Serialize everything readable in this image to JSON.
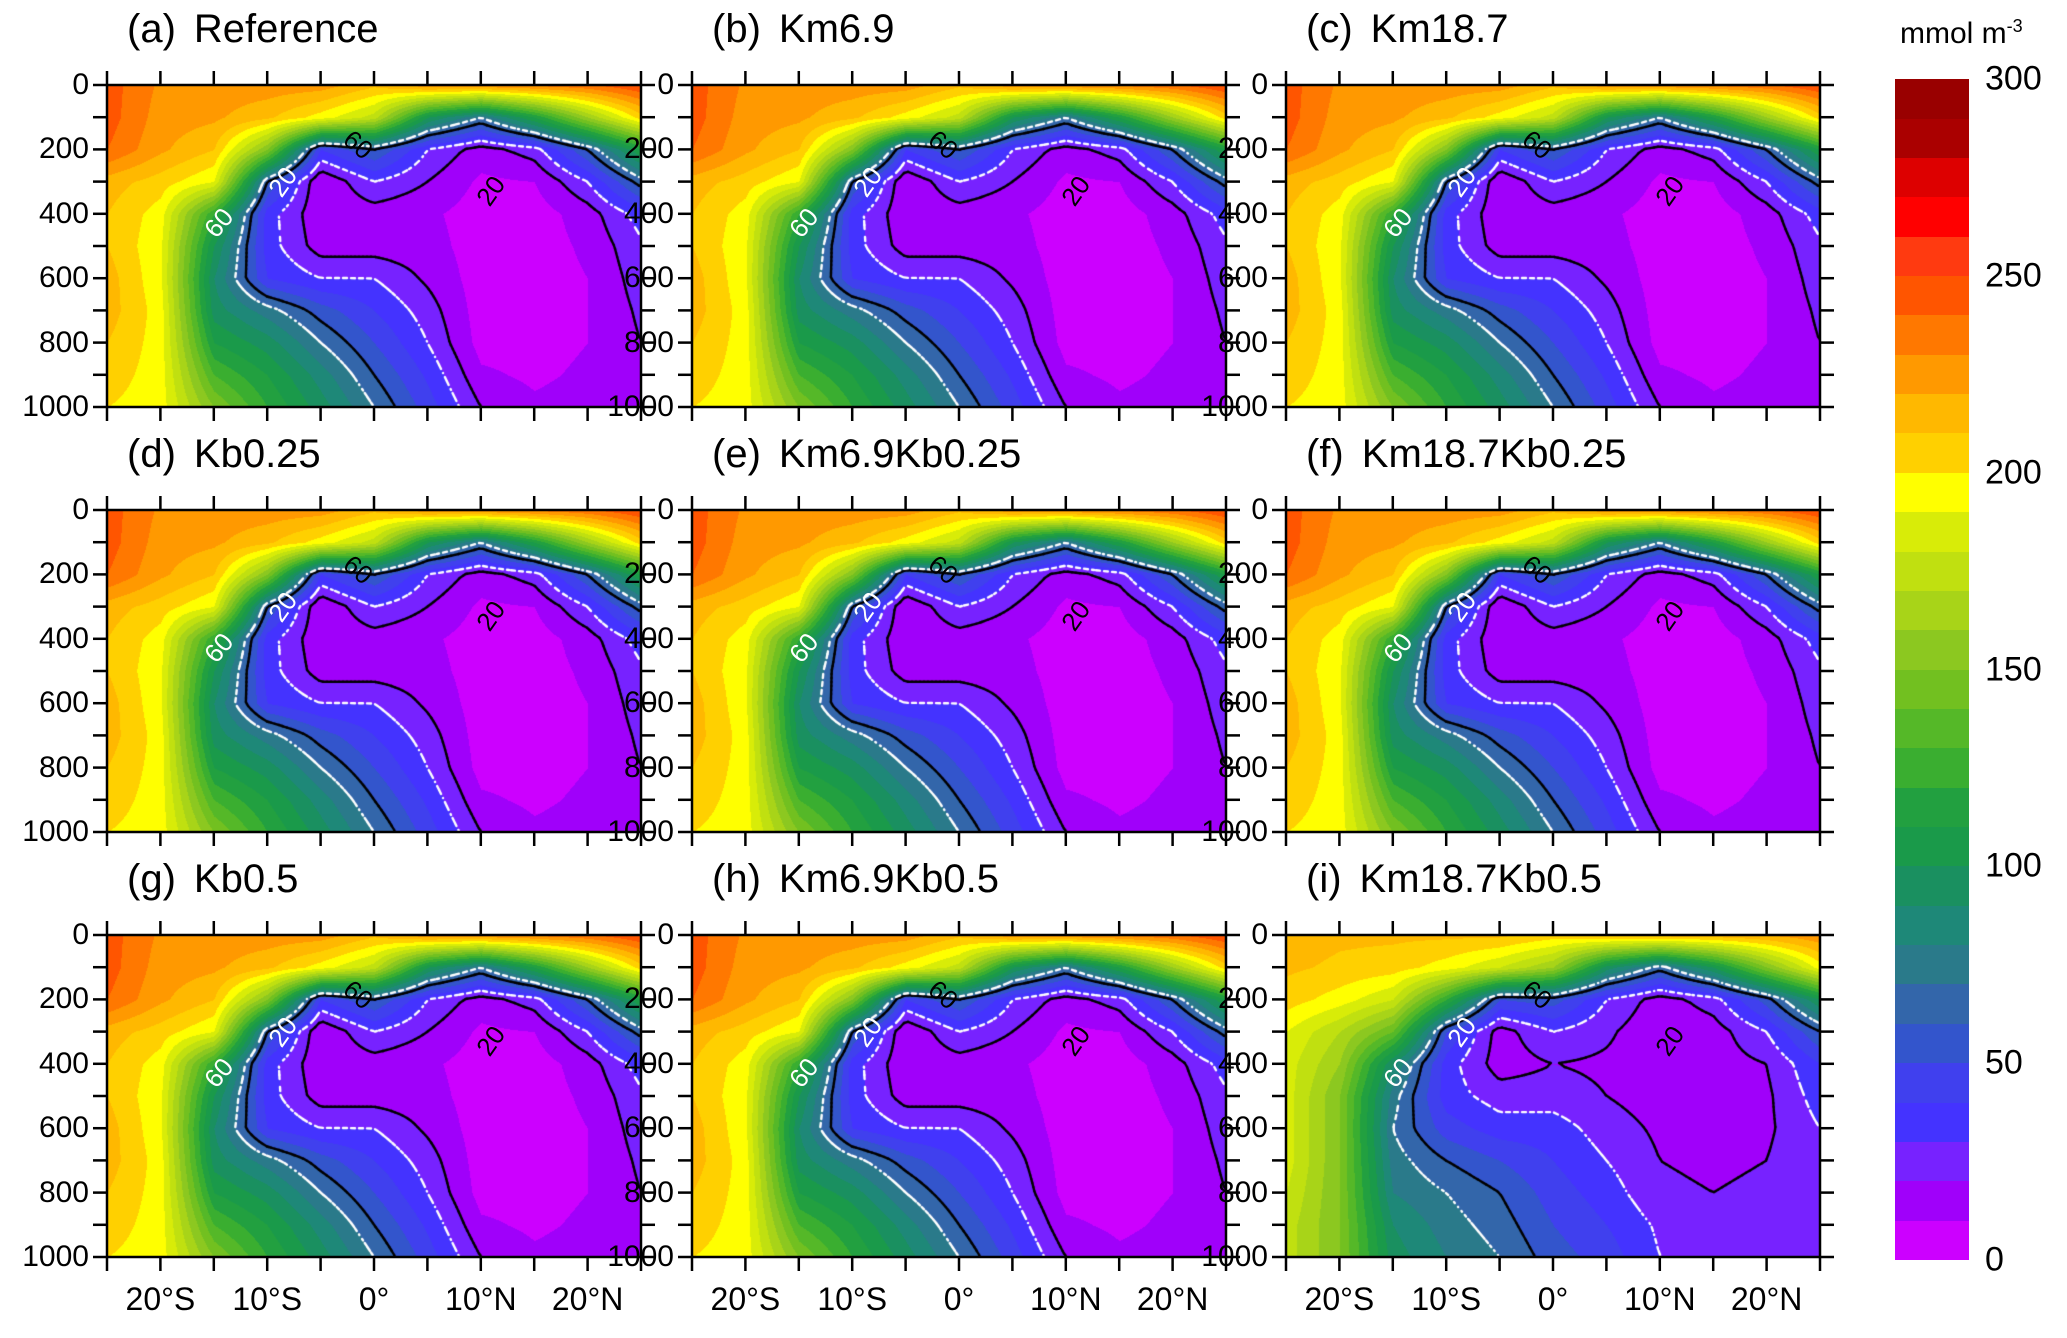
{
  "chart_data": {
    "type": "heatmap",
    "title": "",
    "xlabel": "",
    "ylabel": "",
    "xlim": [
      -25,
      25
    ],
    "ylim": [
      1000,
      0
    ],
    "x_tick_step": 5,
    "x_tick_labels": [
      {
        "value": -20,
        "label": "20°S"
      },
      {
        "value": -10,
        "label": "10°S"
      },
      {
        "value": 0,
        "label": "0°"
      },
      {
        "value": 10,
        "label": "10°N"
      },
      {
        "value": 20,
        "label": "20°N"
      }
    ],
    "y_tick_step": 100,
    "y_tick_labels": [
      {
        "value": 0,
        "label": "0"
      },
      {
        "value": 200,
        "label": "200"
      },
      {
        "value": 400,
        "label": "400"
      },
      {
        "value": 600,
        "label": "600"
      },
      {
        "value": 800,
        "label": "800"
      },
      {
        "value": 1000,
        "label": "1000"
      }
    ],
    "grid": false,
    "colorbar": {
      "unit": "mmol m",
      "unit_sup": "-3",
      "min": 0,
      "max": 300,
      "step": 10,
      "ticks": [
        {
          "value": 0,
          "label": "0"
        },
        {
          "value": 50,
          "label": "50"
        },
        {
          "value": 100,
          "label": "100"
        },
        {
          "value": 150,
          "label": "150"
        },
        {
          "value": 200,
          "label": "200"
        },
        {
          "value": 250,
          "label": "250"
        },
        {
          "value": 300,
          "label": "300"
        }
      ],
      "colors": [
        "#cc00ff",
        "#a000fa",
        "#7722ff",
        "#4433ff",
        "#4040ee",
        "#3355cc",
        "#3366aa",
        "#2a7a8a",
        "#1e8878",
        "#1a9060",
        "#1a9a4a",
        "#22a040",
        "#3aae30",
        "#55b828",
        "#72c020",
        "#8cc820",
        "#a8d418",
        "#c0e010",
        "#d8ec08",
        "#ffff00",
        "#ffd000",
        "#ffb800",
        "#ff9900",
        "#ff7800",
        "#ff5500",
        "#ff3a10",
        "#ff0000",
        "#dd0000",
        "#aa0000",
        "#990000"
      ]
    },
    "lat": [
      -25,
      -20,
      -15,
      -10,
      -5,
      0,
      5,
      10,
      15,
      20,
      25
    ],
    "depth": [
      0,
      100,
      200,
      300,
      400,
      500,
      600,
      700,
      800,
      900,
      1000
    ],
    "contour_levels": [
      20,
      60
    ],
    "contour_labels": {
      "black_60": "60",
      "black_20": "20",
      "white_60": "60",
      "white_20": "20"
    },
    "fields": {
      "base": [
        [
          245,
          228,
          226,
          226,
          225,
          212,
          226,
          228,
          232,
          238,
          250
        ],
        [
          245,
          225,
          222,
          212,
          195,
          175,
          100,
          70,
          110,
          160,
          205
        ],
        [
          240,
          222,
          210,
          150,
          40,
          60,
          30,
          15,
          25,
          60,
          110
        ],
        [
          215,
          205,
          190,
          60,
          10,
          30,
          20,
          8,
          10,
          30,
          65
        ],
        [
          210,
          195,
          120,
          35,
          12,
          15,
          12,
          5,
          5,
          15,
          35
        ],
        [
          210,
          192,
          100,
          35,
          15,
          15,
          14,
          5,
          5,
          12,
          28
        ],
        [
          215,
          192,
          90,
          40,
          30,
          30,
          18,
          5,
          5,
          10,
          25
        ],
        [
          215,
          195,
          95,
          75,
          55,
          40,
          25,
          5,
          5,
          10,
          22
        ],
        [
          210,
          195,
          110,
          95,
          70,
          50,
          30,
          6,
          6,
          10,
          20
        ],
        [
          205,
          195,
          130,
          110,
          85,
          60,
          38,
          12,
          8,
          12,
          20
        ],
        [
          200,
          195,
          150,
          120,
          95,
          70,
          45,
          20,
          12,
          15,
          20
        ]
      ],
      "i": [
        [
          215,
          212,
          212,
          212,
          212,
          205,
          212,
          214,
          216,
          220,
          228
        ],
        [
          212,
          208,
          205,
          195,
          180,
          160,
          95,
          65,
          100,
          150,
          195
        ],
        [
          205,
          195,
          180,
          120,
          50,
          55,
          30,
          15,
          25,
          55,
          100
        ],
        [
          190,
          170,
          140,
          50,
          15,
          30,
          22,
          12,
          15,
          30,
          60
        ],
        [
          185,
          160,
          90,
          35,
          15,
          20,
          18,
          15,
          15,
          20,
          40
        ],
        [
          185,
          150,
          75,
          35,
          25,
          25,
          20,
          15,
          15,
          18,
          35
        ],
        [
          185,
          150,
          70,
          45,
          35,
          35,
          25,
          18,
          15,
          18,
          30
        ],
        [
          185,
          150,
          75,
          60,
          50,
          40,
          30,
          20,
          18,
          20,
          30
        ],
        [
          180,
          150,
          80,
          70,
          60,
          45,
          35,
          22,
          20,
          22,
          30
        ],
        [
          175,
          150,
          90,
          75,
          65,
          50,
          40,
          28,
          22,
          25,
          30
        ],
        [
          175,
          150,
          95,
          80,
          70,
          55,
          45,
          30,
          25,
          28,
          30
        ]
      ]
    },
    "panels": [
      {
        "letter": "(a)",
        "name": "Reference",
        "field": "base"
      },
      {
        "letter": "(b)",
        "name": "Km6.9",
        "field": "base"
      },
      {
        "letter": "(c)",
        "name": "Km18.7",
        "field": "base"
      },
      {
        "letter": "(d)",
        "name": "Kb0.25",
        "field": "base"
      },
      {
        "letter": "(e)",
        "name": "Km6.9Kb0.25",
        "field": "base"
      },
      {
        "letter": "(f)",
        "name": "Km18.7Kb0.25",
        "field": "base"
      },
      {
        "letter": "(g)",
        "name": "Kb0.5",
        "field": "base"
      },
      {
        "letter": "(h)",
        "name": "Km6.9Kb0.5",
        "field": "base"
      },
      {
        "letter": "(i)",
        "name": "Km18.7Kb0.5",
        "field": "i"
      }
    ]
  }
}
